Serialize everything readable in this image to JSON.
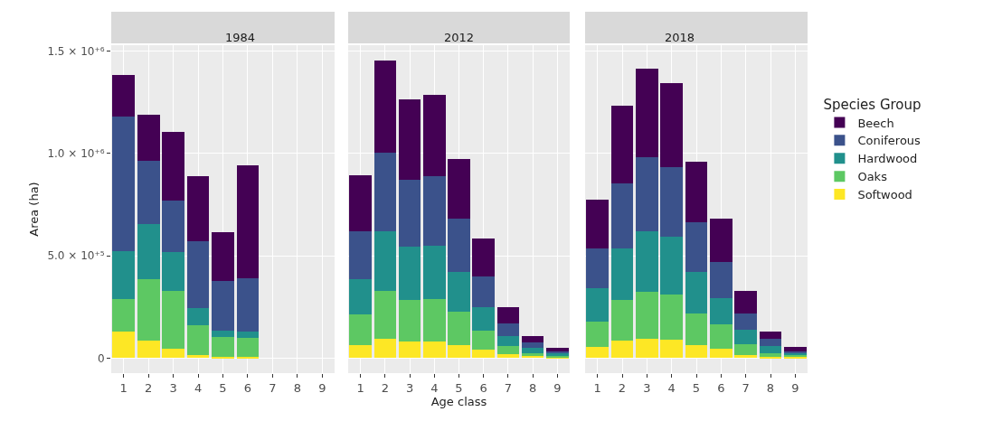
{
  "chart_data": [
    {
      "type": "bar",
      "title": "1984",
      "ylabel": "Area (ha)",
      "legend_title": "Species Group",
      "stacked": true,
      "grid": true,
      "legend": "right",
      "categories": [
        "1",
        "2",
        "3",
        "4",
        "5",
        "6",
        "7",
        "8",
        "9"
      ],
      "ylim": [
        -73000,
        1529000
      ],
      "yticks": [
        {
          "value": 0,
          "label": "0"
        },
        {
          "value": 500000,
          "label": "5.0 × 10⁺⁵"
        },
        {
          "value": 1000000,
          "label": "1.0 × 10⁺⁶"
        },
        {
          "value": 1500000,
          "label": "1.5 × 10⁺⁶"
        }
      ],
      "series": [
        {
          "name": "Softwood",
          "color": "#fde725",
          "values": [
            130000,
            85000,
            45000,
            15000,
            5000,
            5000,
            null,
            null,
            null
          ]
        },
        {
          "name": "Oaks",
          "color": "#5dc863",
          "values": [
            160000,
            300000,
            285000,
            145000,
            100000,
            95000,
            null,
            null,
            null
          ]
        },
        {
          "name": "Hardwood",
          "color": "#21908c",
          "values": [
            235000,
            270000,
            190000,
            85000,
            30000,
            30000,
            null,
            null,
            null
          ]
        },
        {
          "name": "Coniferous",
          "color": "#3b528b",
          "values": [
            655000,
            310000,
            250000,
            325000,
            240000,
            260000,
            null,
            null,
            null
          ]
        },
        {
          "name": "Beech",
          "color": "#440154",
          "values": [
            205000,
            225000,
            335000,
            320000,
            240000,
            550000,
            null,
            null,
            null
          ]
        }
      ]
    },
    {
      "type": "bar",
      "title": "2012",
      "xlabel": "Age class",
      "stacked": true,
      "grid": true,
      "tick_labels": "x",
      "categories": [
        "1",
        "2",
        "3",
        "4",
        "5",
        "6",
        "7",
        "8",
        "9"
      ],
      "ylim": [
        -73000,
        1529000
      ],
      "yticks": [
        0,
        500000,
        1000000,
        1500000
      ],
      "series": [
        {
          "color": "#fde725",
          "values": [
            65000,
            95000,
            80000,
            80000,
            65000,
            40000,
            20000,
            10000,
            5000
          ]
        },
        {
          "color": "#5dc863",
          "values": [
            150000,
            235000,
            205000,
            210000,
            160000,
            95000,
            40000,
            15000,
            7000
          ]
        },
        {
          "color": "#21908c",
          "values": [
            170000,
            290000,
            260000,
            260000,
            195000,
            115000,
            50000,
            25000,
            10000
          ]
        },
        {
          "color": "#3b528b",
          "values": [
            235000,
            385000,
            325000,
            340000,
            260000,
            150000,
            60000,
            25000,
            10000
          ]
        },
        {
          "color": "#440154",
          "values": [
            275000,
            450000,
            395000,
            395000,
            295000,
            185000,
            80000,
            35000,
            20000
          ]
        }
      ]
    },
    {
      "type": "bar",
      "title": "2018",
      "stacked": true,
      "grid": true,
      "tick_labels": "x",
      "categories": [
        "1",
        "2",
        "3",
        "4",
        "5",
        "6",
        "7",
        "8",
        "9"
      ],
      "ylim": [
        -73000,
        1529000
      ],
      "yticks": [
        0,
        500000,
        1000000,
        1500000
      ],
      "series": [
        {
          "color": "#fde725",
          "values": [
            55000,
            85000,
            95000,
            90000,
            65000,
            45000,
            15000,
            8000,
            5000
          ]
        },
        {
          "color": "#5dc863",
          "values": [
            125000,
            200000,
            230000,
            220000,
            155000,
            120000,
            55000,
            17000,
            10000
          ]
        },
        {
          "color": "#21908c",
          "values": [
            160000,
            250000,
            295000,
            285000,
            200000,
            130000,
            70000,
            35000,
            10000
          ]
        },
        {
          "color": "#3b528b",
          "values": [
            195000,
            320000,
            360000,
            340000,
            245000,
            175000,
            80000,
            35000,
            10000
          ]
        },
        {
          "color": "#440154",
          "values": [
            240000,
            380000,
            435000,
            410000,
            295000,
            210000,
            110000,
            35000,
            20000
          ]
        }
      ]
    }
  ]
}
